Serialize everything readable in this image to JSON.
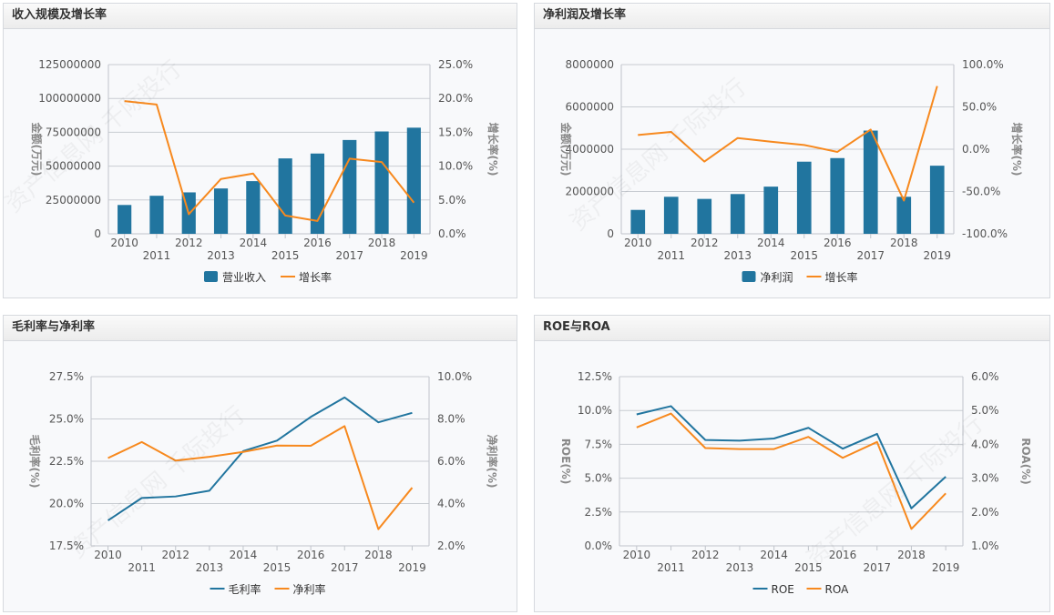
{
  "watermark": "资产信息网 千际投行",
  "colors": {
    "blue": "#21759f",
    "orange": "#f7891e"
  },
  "chart_data": [
    {
      "id": "revenue",
      "title": "收入规模及增长率",
      "type": "bar+line",
      "categories": [
        "2010",
        "2011",
        "2012",
        "2013",
        "2014",
        "2015",
        "2016",
        "2017",
        "2018",
        "2019"
      ],
      "ylabel_left": "金额(万元)",
      "ylabel_right": "增长率(%)",
      "ylim_left": [
        0,
        125000000
      ],
      "yticks_left": [
        "0",
        "25000000",
        "50000000",
        "75000000",
        "100000000",
        "125000000"
      ],
      "ylim_right": [
        0,
        25
      ],
      "yticks_right": [
        "0.0%",
        "5.0%",
        "10.0%",
        "15.0%",
        "20.0%",
        "25.0%"
      ],
      "grid": true,
      "legend": "bottom",
      "series": [
        {
          "name": "营业收入",
          "kind": "bar",
          "axis": "left",
          "color": "#21759f",
          "values": [
            21300000,
            28100000,
            30600000,
            33500000,
            38900000,
            55700000,
            59300000,
            69300000,
            75600000,
            78400000
          ]
        },
        {
          "name": "增长率",
          "kind": "line",
          "axis": "right",
          "color": "#f7891e",
          "values": [
            19.6,
            19.1,
            2.9,
            8.1,
            8.9,
            2.7,
            1.9,
            11.1,
            10.6,
            4.6
          ]
        }
      ]
    },
    {
      "id": "net-profit",
      "title": "净利润及增长率",
      "type": "bar+line",
      "categories": [
        "2010",
        "2011",
        "2012",
        "2013",
        "2014",
        "2015",
        "2016",
        "2017",
        "2018",
        "2019"
      ],
      "ylabel_left": "金额(万元)",
      "ylabel_right": "增长率(%)",
      "ylim_left": [
        0,
        8000000
      ],
      "yticks_left": [
        "0",
        "2000000",
        "4000000",
        "6000000",
        "8000000"
      ],
      "ylim_right": [
        -100,
        100
      ],
      "yticks_right": [
        "-100.0%",
        "-50.0%",
        "0.0%",
        "50.0%",
        "100.0%"
      ],
      "grid": true,
      "legend": "bottom",
      "series": [
        {
          "name": "净利润",
          "kind": "bar",
          "axis": "left",
          "color": "#21759f",
          "values": [
            1130000,
            1750000,
            1650000,
            1880000,
            2230000,
            3410000,
            3580000,
            4880000,
            1750000,
            3220000
          ]
        },
        {
          "name": "增长率",
          "kind": "line",
          "axis": "right",
          "color": "#f7891e",
          "values": [
            16.8,
            20.4,
            -14.6,
            13.2,
            8.9,
            5.0,
            -3.2,
            23.2,
            -60.7,
            74.6
          ]
        }
      ]
    },
    {
      "id": "margins",
      "title": "毛利率与净利率",
      "type": "line",
      "categories": [
        "2010",
        "2011",
        "2012",
        "2013",
        "2014",
        "2015",
        "2016",
        "2017",
        "2018",
        "2019"
      ],
      "ylabel_left": "毛利率(%)",
      "ylabel_right": "净利率(%)",
      "ylim_left": [
        17.5,
        27.5
      ],
      "yticks_left": [
        "17.5%",
        "20.0%",
        "22.5%",
        "25.0%",
        "27.5%"
      ],
      "ylim_right": [
        2,
        10
      ],
      "yticks_right": [
        "2.0%",
        "4.0%",
        "6.0%",
        "8.0%",
        "10.0%"
      ],
      "grid": true,
      "legend": "bottom",
      "series": [
        {
          "name": "毛利率",
          "kind": "line",
          "axis": "left",
          "color": "#21759f",
          "values": [
            19.0,
            20.33,
            20.42,
            20.76,
            23.1,
            23.72,
            25.12,
            26.27,
            24.8,
            25.36
          ]
        },
        {
          "name": "净利率",
          "kind": "line",
          "axis": "right",
          "color": "#f7891e",
          "values": [
            6.15,
            6.91,
            6.03,
            6.21,
            6.44,
            6.74,
            6.73,
            7.66,
            2.79,
            4.75
          ]
        }
      ]
    },
    {
      "id": "roe-roa",
      "title": "ROE与ROA",
      "type": "line",
      "categories": [
        "2010",
        "2011",
        "2012",
        "2013",
        "2014",
        "2015",
        "2016",
        "2017",
        "2018",
        "2019"
      ],
      "ylabel_left": "ROE(%)",
      "ylabel_right": "ROA(%)",
      "ylim_left": [
        0,
        12.5
      ],
      "yticks_left": [
        "0.0%",
        "2.5%",
        "5.0%",
        "7.5%",
        "10.0%",
        "12.5%"
      ],
      "ylim_right": [
        1,
        6
      ],
      "yticks_right": [
        "1.0%",
        "2.0%",
        "3.0%",
        "4.0%",
        "5.0%",
        "6.0%"
      ],
      "grid": true,
      "legend": "bottom",
      "series": [
        {
          "name": "ROE",
          "kind": "line",
          "axis": "left",
          "color": "#21759f",
          "values": [
            9.71,
            10.32,
            7.82,
            7.77,
            7.93,
            8.72,
            7.18,
            8.27,
            2.77,
            5.11
          ]
        },
        {
          "name": "ROA",
          "kind": "line",
          "axis": "right",
          "color": "#f7891e",
          "values": [
            4.5,
            4.91,
            3.89,
            3.86,
            3.86,
            4.22,
            3.6,
            4.07,
            1.5,
            2.55
          ]
        }
      ]
    }
  ]
}
